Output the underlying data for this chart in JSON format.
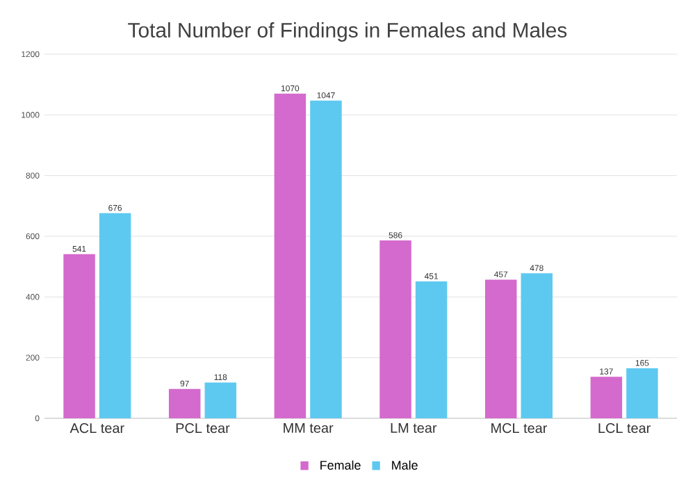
{
  "chart_data": {
    "type": "bar",
    "title": "Total Number of Findings in Females and Males",
    "categories": [
      "ACL tear",
      "PCL tear",
      "MM tear",
      "LM tear",
      "MCL tear",
      "LCL tear"
    ],
    "series": [
      {
        "name": "Female",
        "color": "#d46acd",
        "values": [
          541,
          97,
          1070,
          586,
          457,
          137
        ]
      },
      {
        "name": "Male",
        "color": "#5ec9f0",
        "values": [
          676,
          118,
          1047,
          451,
          478,
          165
        ]
      }
    ],
    "ylim": [
      0,
      1200
    ],
    "yticks": [
      0,
      200,
      400,
      600,
      800,
      1000,
      1200
    ],
    "grid": "y",
    "legend": "bottom",
    "data_labels": true
  }
}
